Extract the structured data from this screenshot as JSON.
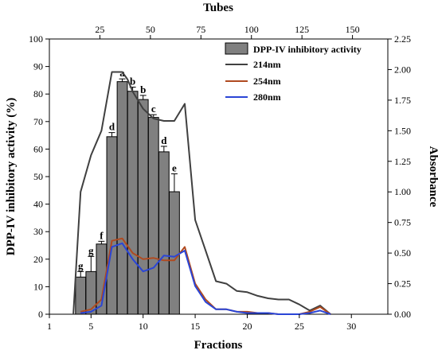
{
  "chart_data": {
    "type": "bar+line",
    "xlabel": "Fractions",
    "ylabel_left": "DPP-IV inhibitory activity (%)",
    "ylabel_right": "Absorbance",
    "xlabel_top": "Tubes",
    "xlim": [
      1,
      33.5
    ],
    "ylim_left": [
      0,
      100
    ],
    "ylim_right": [
      0,
      2.25
    ],
    "top_xlim": [
      0,
      167.5
    ],
    "xticks": [
      1,
      5,
      10,
      15,
      20,
      25,
      30
    ],
    "yticks_left": [
      0,
      10,
      20,
      30,
      40,
      50,
      60,
      70,
      80,
      90,
      100
    ],
    "yticks_right": [
      0.0,
      0.25,
      0.5,
      0.75,
      1.0,
      1.25,
      1.5,
      1.75,
      2.0,
      2.25
    ],
    "yticks_right_labels": [
      "0.00",
      "0.25",
      "0.50",
      "0.75",
      "1.00",
      "1.25",
      "1.50",
      "1.75",
      "2.00",
      "2.25"
    ],
    "xticks_top": [
      25,
      50,
      75,
      100,
      125,
      150
    ],
    "legend_position": "top-right",
    "bars": {
      "name": "DPP-IV inhibitory activity",
      "color": "#808080",
      "x": [
        4,
        5,
        6,
        7,
        8,
        9,
        10,
        11,
        12,
        13
      ],
      "values": [
        13.5,
        15.5,
        25.5,
        64.5,
        84.5,
        81,
        78,
        71.5,
        59,
        44.5
      ],
      "errors": [
        2,
        5.5,
        1,
        1.5,
        1,
        1.5,
        1.5,
        1,
        2,
        6.5
      ],
      "letters": [
        "g",
        "g",
        "f",
        "d",
        "a",
        "b",
        "b",
        "c",
        "d",
        "e"
      ]
    },
    "series": [
      {
        "name": "214nm",
        "color": "#404040",
        "x": [
          3.3,
          4,
          5,
          6,
          7,
          7.5,
          8,
          8.5,
          9,
          10,
          11,
          12,
          13,
          14,
          15,
          16,
          17,
          18,
          19,
          20,
          21,
          22,
          23,
          24,
          25,
          26,
          27,
          28
        ],
        "values": [
          0.0,
          1.0,
          1.3,
          1.5,
          1.98,
          1.98,
          1.98,
          1.92,
          1.82,
          1.68,
          1.6,
          1.58,
          1.58,
          1.72,
          0.77,
          0.52,
          0.27,
          0.25,
          0.19,
          0.18,
          0.15,
          0.13,
          0.12,
          0.12,
          0.08,
          0.03,
          0.07,
          0.0
        ]
      },
      {
        "name": "254nm",
        "color": "#b04a20",
        "x": [
          4,
          5,
          6,
          7,
          8,
          9,
          10,
          11,
          12,
          13,
          14,
          15,
          16,
          17,
          18,
          19,
          20,
          21,
          22,
          23,
          24,
          25,
          26,
          27,
          28
        ],
        "values": [
          0.02,
          0.04,
          0.12,
          0.6,
          0.62,
          0.5,
          0.45,
          0.46,
          0.44,
          0.44,
          0.55,
          0.25,
          0.12,
          0.04,
          0.04,
          0.02,
          0.02,
          0.01,
          0.01,
          0.0,
          0.0,
          0.0,
          0.02,
          0.06,
          0.0
        ]
      },
      {
        "name": "280nm",
        "color": "#2a45d6",
        "x": [
          4,
          5,
          6,
          7,
          8,
          9,
          10,
          11,
          12,
          13,
          14,
          15,
          16,
          17,
          18,
          19,
          20,
          21,
          22,
          23,
          24,
          25,
          26,
          27,
          28
        ],
        "values": [
          0.01,
          0.02,
          0.07,
          0.55,
          0.58,
          0.45,
          0.35,
          0.38,
          0.48,
          0.47,
          0.52,
          0.23,
          0.1,
          0.04,
          0.04,
          0.02,
          0.01,
          0.01,
          0.01,
          0.0,
          0.0,
          0.0,
          0.01,
          0.03,
          0.0
        ]
      }
    ]
  }
}
